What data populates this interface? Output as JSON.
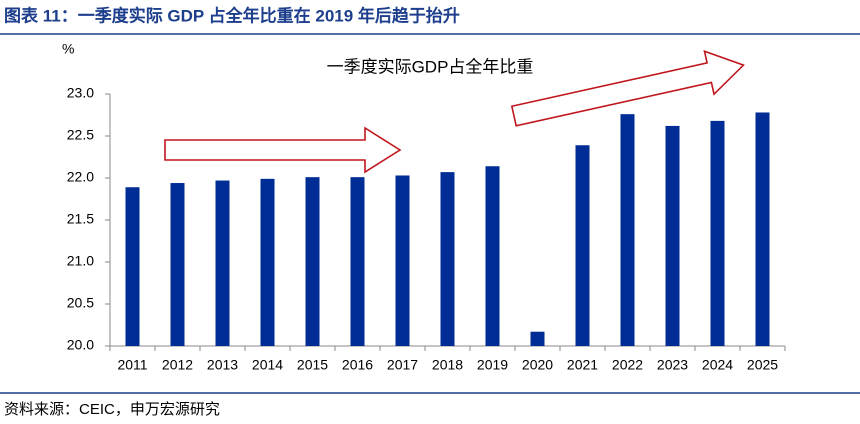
{
  "chart_data": {
    "type": "bar",
    "title": "图表 11：一季度实际 GDP 占全年比重在 2019 年后趋于抬升",
    "y_label": "%",
    "source": "资料来源：CEIC，申万宏源研究",
    "categories": [
      "2011",
      "2012",
      "2013",
      "2014",
      "2015",
      "2016",
      "2017",
      "2018",
      "2019",
      "2020",
      "2021",
      "2022",
      "2023",
      "2024",
      "2025"
    ],
    "series": [
      {
        "name": "一季度实际GDP占全年比重",
        "color": "#002c96",
        "values": [
          21.89,
          21.94,
          21.97,
          21.99,
          22.01,
          22.01,
          22.03,
          22.07,
          22.14,
          20.17,
          22.39,
          22.76,
          22.62,
          22.68,
          22.78
        ]
      }
    ],
    "ylim": [
      20.0,
      23.0
    ],
    "yticks": [
      {
        "value": 20,
        "label": "20.0"
      },
      {
        "value": 20.5,
        "label": "20.5"
      },
      {
        "value": 21,
        "label": "21.0"
      },
      {
        "value": 21.5,
        "label": "21.5"
      },
      {
        "value": 22,
        "label": "22.0"
      },
      {
        "value": 22.5,
        "label": "22.5"
      },
      {
        "value": 23,
        "label": "23.0"
      }
    ],
    "grid": false
  }
}
